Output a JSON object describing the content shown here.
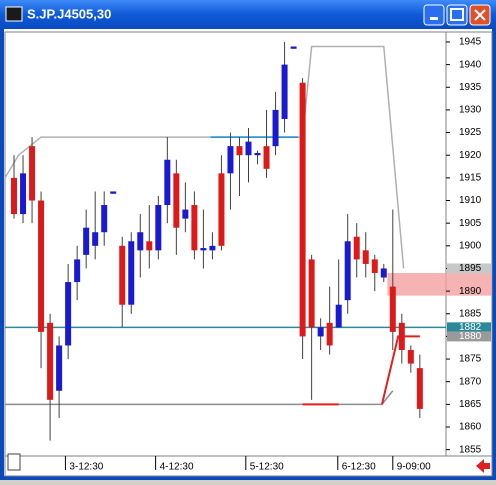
{
  "window": {
    "title": "S.JP.J4505,30"
  },
  "chart_data": {
    "type": "candlestick",
    "open": [
      1915,
      1907,
      1922,
      1910,
      1883,
      1868,
      1878,
      1892,
      1898,
      1900,
      1903,
      1911.5,
      1900,
      1887,
      1899,
      1901,
      1899,
      1909,
      1916,
      1906,
      1909,
      1899,
      1899,
      1916,
      1916,
      1922,
      1920,
      1920,
      1922,
      1922,
      1928,
      1943.5,
      1936,
      1897,
      1880,
      1883,
      1882,
      1888,
      1902,
      1899,
      1897,
      1893,
      1891,
      1883,
      1877,
      1873
    ],
    "high": [
      1920,
      1920,
      1924,
      1912,
      1885,
      1880,
      1896,
      1900,
      1908,
      1912,
      1912,
      1912,
      1902,
      1903,
      1907,
      1909,
      1911,
      1924,
      1919,
      1914,
      1912,
      1908,
      1903,
      1920,
      1925,
      1924,
      1926,
      1921,
      1930,
      1934,
      1945,
      1944,
      1937,
      1898,
      1884,
      1891,
      1897,
      1907,
      1905,
      1903,
      1898,
      1896,
      1908,
      1885,
      1878,
      1876
    ],
    "low": [
      1906,
      1905,
      1905,
      1873,
      1857,
      1862,
      1875,
      1888,
      1895,
      1897,
      1900,
      1911.5,
      1882,
      1885,
      1893,
      1895,
      1897,
      1905,
      1898,
      1903,
      1897,
      1895,
      1897,
      1899,
      1908,
      1911,
      1914,
      1918,
      1915,
      1920,
      1925,
      1943.5,
      1875,
      1866,
      1877,
      1876,
      1882,
      1885,
      1893,
      1893,
      1890,
      1892,
      1877,
      1874,
      1872,
      1862
    ],
    "close": [
      1907,
      1916,
      1910,
      1881,
      1866,
      1878,
      1892,
      1897,
      1904,
      1903,
      1909,
      1912,
      1887,
      1901,
      1903,
      1899,
      1909,
      1919,
      1904,
      1908,
      1899,
      1899.5,
      1900,
      1900,
      1922,
      1920,
      1923,
      1920.5,
      1917,
      1930,
      1940,
      1944,
      1880,
      1882,
      1882,
      1878,
      1887,
      1901,
      1897,
      1896,
      1894,
      1895,
      1881,
      1877,
      1874,
      1864
    ],
    "up_color": "#1a1ad0",
    "down_color": "#dd1a1a",
    "xlim": [
      -1,
      47.9
    ],
    "xticks": [
      {
        "value": 5.7,
        "label": "3-12:30"
      },
      {
        "value": 15.7,
        "label": "4-12:30"
      },
      {
        "value": 25.7,
        "label": "5-12:30"
      },
      {
        "value": 35.9,
        "label": "6-12:30"
      },
      {
        "value": 42,
        "label": "9-09:00"
      }
    ],
    "ylim": [
      1853.6,
      1947.2
    ],
    "yticks": [
      1855,
      1860,
      1865,
      1870,
      1875,
      1880,
      1885,
      1890,
      1895,
      1900,
      1905,
      1910,
      1915,
      1920,
      1925,
      1930,
      1935,
      1940,
      1945
    ],
    "overlays": [
      {
        "color": "#b0b0b0",
        "x": [
          -1,
          0.5,
          3,
          32,
          33,
          41,
          43.2
        ],
        "values": [
          1915,
          1920,
          1924,
          1924,
          1944,
          1944,
          1895
        ]
      },
      {
        "color": "#8c8c8c",
        "x": [
          -1,
          40.8,
          42
        ],
        "values": [
          1865,
          1865,
          1868
        ]
      },
      {
        "color": "#e02020",
        "x": [
          40.8,
          42.6,
          45
        ],
        "values": [
          1865,
          1880,
          1880
        ]
      },
      {
        "color": "#e02020",
        "x": [
          32,
          36
        ],
        "values": [
          1865,
          1865
        ]
      },
      {
        "color": "#1a8ad0",
        "x": [
          21.8,
          31.5
        ],
        "values": [
          1924,
          1924
        ]
      },
      {
        "color": "#2a8a9a",
        "x": [
          -1,
          47.9
        ],
        "values": [
          1882,
          1882
        ]
      }
    ],
    "zone": {
      "color": "#f4a0a0",
      "x": 41.4,
      "low": 1889,
      "high": 1894
    },
    "markers": [
      {
        "value": 1895,
        "color": "#c8c8c8"
      },
      {
        "value": 1882,
        "color": "#2a8a9a"
      },
      {
        "value": 1880,
        "color": "#9a9a9a"
      }
    ]
  }
}
